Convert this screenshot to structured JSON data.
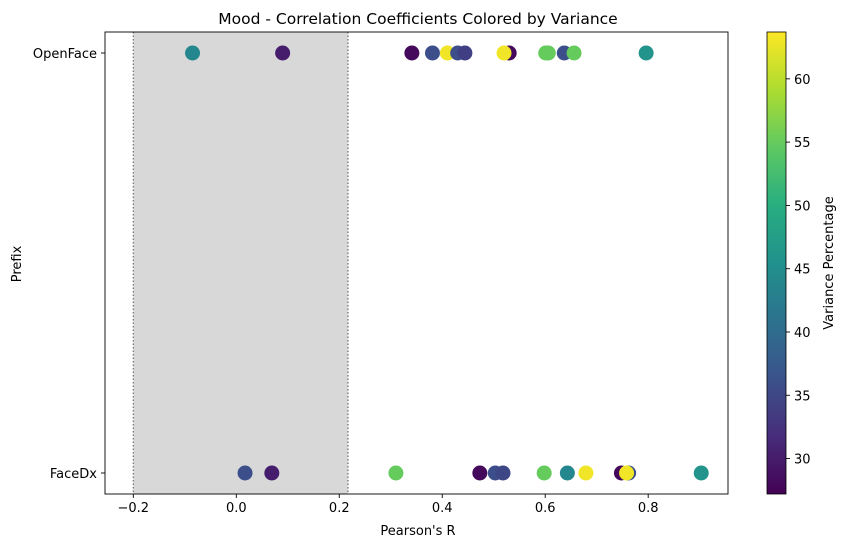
{
  "chart_data": {
    "type": "scatter",
    "title": "Mood - Correlation Coefficients Colored by Variance",
    "xlabel": "Pearson's R",
    "ylabel": "Prefix",
    "xlim": [
      -0.255,
      0.955
    ],
    "x_ticks": [
      -0.2,
      0.0,
      0.2,
      0.4,
      0.6,
      0.8
    ],
    "x_tick_labels": [
      "−0.2",
      "0.0",
      "0.2",
      "0.4",
      "0.6",
      "0.8"
    ],
    "categories": [
      "OpenFace",
      "FaceDx"
    ],
    "shaded_region": {
      "x_start": -0.2,
      "x_end": 0.217,
      "color": "#d8d8d8",
      "border": "dotted"
    },
    "grid": false,
    "colorbar": {
      "label": "Variance Percentage",
      "range": [
        27.2,
        63.7
      ],
      "ticks": [
        30,
        35,
        40,
        45,
        50,
        55,
        60
      ],
      "colormap": "viridis"
    },
    "points": [
      {
        "category": "OpenFace",
        "x": -0.085,
        "variance": 44
      },
      {
        "category": "OpenFace",
        "x": 0.09,
        "variance": 30
      },
      {
        "category": "OpenFace",
        "x": 0.341,
        "variance": 28
      },
      {
        "category": "OpenFace",
        "x": 0.381,
        "variance": 36
      },
      {
        "category": "OpenFace",
        "x": 0.41,
        "variance": 63
      },
      {
        "category": "OpenFace",
        "x": 0.43,
        "variance": 36
      },
      {
        "category": "OpenFace",
        "x": 0.444,
        "variance": 34
      },
      {
        "category": "OpenFace",
        "x": 0.53,
        "variance": 28
      },
      {
        "category": "OpenFace",
        "x": 0.52,
        "variance": 63
      },
      {
        "category": "OpenFace",
        "x": 0.601,
        "variance": 55
      },
      {
        "category": "OpenFace",
        "x": 0.606,
        "variance": 55
      },
      {
        "category": "OpenFace",
        "x": 0.637,
        "variance": 36
      },
      {
        "category": "OpenFace",
        "x": 0.656,
        "variance": 55
      },
      {
        "category": "OpenFace",
        "x": 0.796,
        "variance": 46
      },
      {
        "category": "FaceDx",
        "x": 0.017,
        "variance": 36
      },
      {
        "category": "FaceDx",
        "x": 0.069,
        "variance": 30
      },
      {
        "category": "FaceDx",
        "x": 0.31,
        "variance": 55
      },
      {
        "category": "FaceDx",
        "x": 0.473,
        "variance": 28
      },
      {
        "category": "FaceDx",
        "x": 0.503,
        "variance": 36
      },
      {
        "category": "FaceDx",
        "x": 0.518,
        "variance": 35
      },
      {
        "category": "FaceDx",
        "x": 0.598,
        "variance": 55
      },
      {
        "category": "FaceDx",
        "x": 0.643,
        "variance": 44
      },
      {
        "category": "FaceDx",
        "x": 0.679,
        "variance": 63
      },
      {
        "category": "FaceDx",
        "x": 0.748,
        "variance": 28
      },
      {
        "category": "FaceDx",
        "x": 0.762,
        "variance": 36
      },
      {
        "category": "FaceDx",
        "x": 0.758,
        "variance": 63
      },
      {
        "category": "FaceDx",
        "x": 0.903,
        "variance": 46
      }
    ]
  }
}
